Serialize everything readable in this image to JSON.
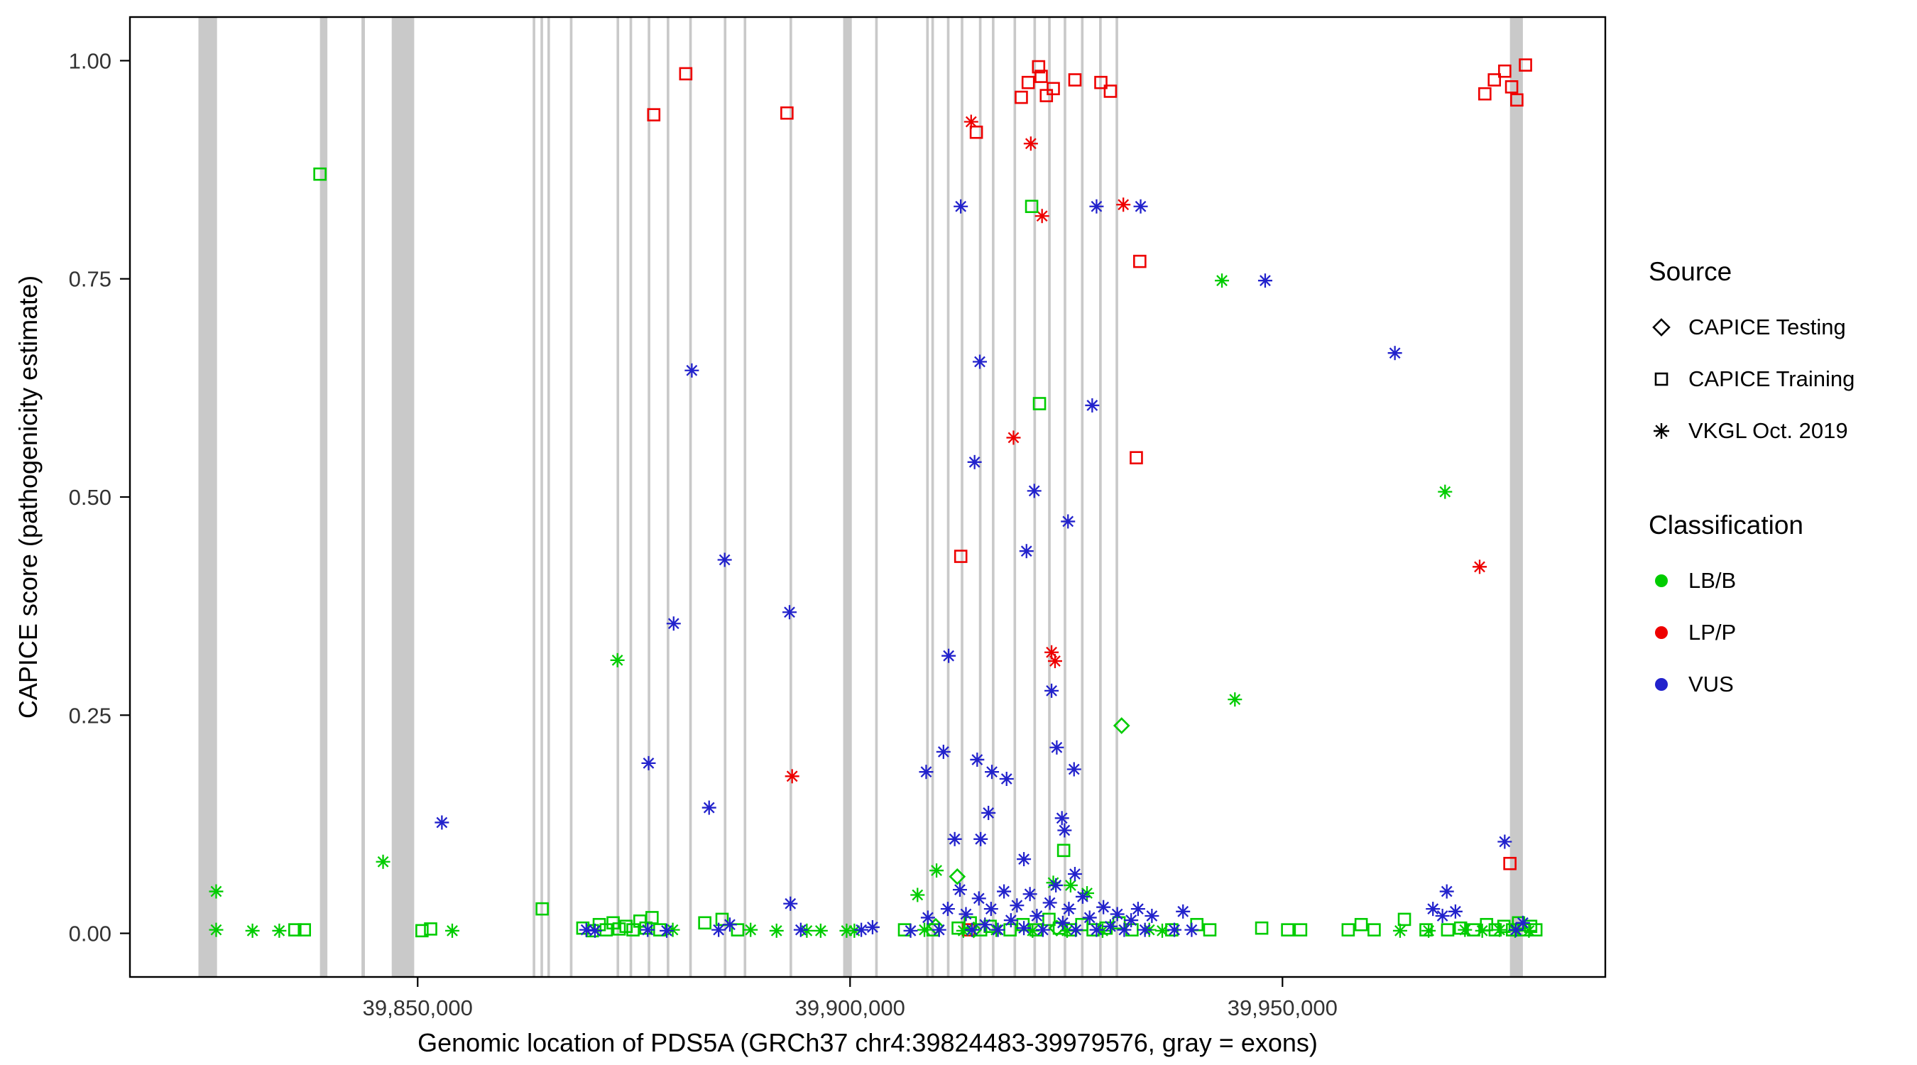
{
  "figure": {
    "xlabel": "Genomic location of PDS5A (GRCh37 chr4:39824483-39979576, gray = exons)",
    "ylabel": "CAPICE score (pathogenicity estimate)"
  },
  "legend": {
    "source_title": "Source",
    "source_items": [
      {
        "shape": "diamond",
        "label": "CAPICE Testing"
      },
      {
        "shape": "square",
        "label": "CAPICE Training"
      },
      {
        "shape": "asterisk",
        "label": "VKGL Oct. 2019"
      }
    ],
    "classification_title": "Classification",
    "classification_items": [
      {
        "color": "#00CC00",
        "label": "LB/B"
      },
      {
        "color": "#EE0000",
        "label": "LP/P"
      },
      {
        "color": "#2222CC",
        "label": "VUS"
      }
    ]
  },
  "chart_data": {
    "type": "scatter",
    "title": "",
    "xlabel": "Genomic location of PDS5A (GRCh37 chr4:39824483-39979576, gray = exons)",
    "ylabel": "CAPICE score (pathogenicity estimate)",
    "xlim": [
      39816728,
      39987331
    ],
    "ylim": [
      -0.05,
      1.05
    ],
    "x_ticks": [
      {
        "value": 39850000,
        "label": "39,850,000"
      },
      {
        "value": 39900000,
        "label": "39,900,000"
      },
      {
        "value": 39950000,
        "label": "39,950,000"
      }
    ],
    "y_ticks": [
      {
        "value": 0.0,
        "label": "0.00"
      },
      {
        "value": 0.25,
        "label": "0.25"
      },
      {
        "value": 0.5,
        "label": "0.50"
      },
      {
        "value": 0.75,
        "label": "0.75"
      },
      {
        "value": 1.0,
        "label": "1.00"
      }
    ],
    "grid": "off",
    "legend_position": "right",
    "exon_color": "#C9C9C9",
    "exons": [
      [
        39824650,
        39826800
      ],
      [
        39838700,
        39839560
      ],
      [
        39843500,
        39843900
      ],
      [
        39847000,
        39849600
      ],
      [
        39863300,
        39863600
      ],
      [
        39864200,
        39864500
      ],
      [
        39865000,
        39865300
      ],
      [
        39867600,
        39867900
      ],
      [
        39873000,
        39873300
      ],
      [
        39874500,
        39874800
      ],
      [
        39876600,
        39876900
      ],
      [
        39878800,
        39879100
      ],
      [
        39881400,
        39881700
      ],
      [
        39885400,
        39885700
      ],
      [
        39887700,
        39888000
      ],
      [
        39893000,
        39893300
      ],
      [
        39899200,
        39900200
      ],
      [
        39902900,
        39903200
      ],
      [
        39908800,
        39909100
      ],
      [
        39909400,
        39909700
      ],
      [
        39911200,
        39911500
      ],
      [
        39912800,
        39913100
      ],
      [
        39914900,
        39915200
      ],
      [
        39916400,
        39916700
      ],
      [
        39918900,
        39919200
      ],
      [
        39921200,
        39921500
      ],
      [
        39922900,
        39923200
      ],
      [
        39924700,
        39925000
      ],
      [
        39926700,
        39927000
      ],
      [
        39928800,
        39929100
      ],
      [
        39930700,
        39931000
      ],
      [
        39976300,
        39977800
      ]
    ],
    "colors": {
      "LB/B": "#00CC00",
      "LP/P": "#EE0000",
      "VUS": "#2222CC"
    },
    "shapes": {
      "CAPICE Testing": "diamond",
      "CAPICE Training": "square",
      "VKGL Oct. 2019": "asterisk"
    },
    "points_format": [
      "genomic_position",
      "capice_score"
    ],
    "series": [
      {
        "classification": "LP/P",
        "source": "CAPICE Training",
        "points": [
          [
            39877300,
            0.938
          ],
          [
            39881000,
            0.985
          ],
          [
            39892700,
            0.94
          ],
          [
            39914600,
            0.918
          ],
          [
            39912800,
            0.432
          ],
          [
            39919800,
            0.958
          ],
          [
            39920600,
            0.975
          ],
          [
            39921800,
            0.993
          ],
          [
            39922100,
            0.982
          ],
          [
            39922700,
            0.96
          ],
          [
            39923500,
            0.968
          ],
          [
            39926000,
            0.978
          ],
          [
            39929000,
            0.975
          ],
          [
            39930100,
            0.965
          ],
          [
            39933500,
            0.77
          ],
          [
            39933100,
            0.545
          ],
          [
            39973400,
            0.962
          ],
          [
            39974500,
            0.978
          ],
          [
            39975700,
            0.988
          ],
          [
            39976500,
            0.97
          ],
          [
            39977100,
            0.955
          ],
          [
            39978100,
            0.995
          ],
          [
            39976300,
            0.08
          ],
          [
            39913700,
            0.004
          ]
        ]
      },
      {
        "classification": "LP/P",
        "source": "VKGL Oct. 2019",
        "points": [
          [
            39914000,
            0.93
          ],
          [
            39920900,
            0.905
          ],
          [
            39922200,
            0.822
          ],
          [
            39931600,
            0.835
          ],
          [
            39918900,
            0.568
          ],
          [
            39923300,
            0.322
          ],
          [
            39923700,
            0.312
          ],
          [
            39893300,
            0.18
          ],
          [
            39972800,
            0.42
          ]
        ]
      },
      {
        "classification": "LB/B",
        "source": "CAPICE Training",
        "points": [
          [
            39838700,
            0.87
          ],
          [
            39921000,
            0.833
          ],
          [
            39921900,
            0.607
          ],
          [
            39864400,
            0.028
          ],
          [
            39924700,
            0.095
          ],
          [
            39835800,
            0.004
          ],
          [
            39836900,
            0.004
          ],
          [
            39850500,
            0.003
          ],
          [
            39851500,
            0.005
          ],
          [
            39869100,
            0.006
          ],
          [
            39870200,
            0.003
          ],
          [
            39871000,
            0.01
          ],
          [
            39871800,
            0.004
          ],
          [
            39872600,
            0.012
          ],
          [
            39873300,
            0.005
          ],
          [
            39874100,
            0.008
          ],
          [
            39874900,
            0.004
          ],
          [
            39875700,
            0.014
          ],
          [
            39876400,
            0.006
          ],
          [
            39877100,
            0.018
          ],
          [
            39878000,
            0.004
          ],
          [
            39883200,
            0.012
          ],
          [
            39885200,
            0.016
          ],
          [
            39887000,
            0.004
          ],
          [
            39906300,
            0.004
          ],
          [
            39909600,
            0.004
          ],
          [
            39912500,
            0.006
          ],
          [
            39913900,
            0.012
          ],
          [
            39915100,
            0.004
          ],
          [
            39916200,
            0.008
          ],
          [
            39918500,
            0.004
          ],
          [
            39920000,
            0.01
          ],
          [
            39921500,
            0.004
          ],
          [
            39923000,
            0.016
          ],
          [
            39924200,
            0.006
          ],
          [
            39925500,
            0.004
          ],
          [
            39926800,
            0.01
          ],
          [
            39928100,
            0.004
          ],
          [
            39929600,
            0.006
          ],
          [
            39931100,
            0.012
          ],
          [
            39932600,
            0.004
          ],
          [
            39937200,
            0.004
          ],
          [
            39940100,
            0.01
          ],
          [
            39941600,
            0.004
          ],
          [
            39947600,
            0.006
          ],
          [
            39950600,
            0.004
          ],
          [
            39952100,
            0.004
          ],
          [
            39957600,
            0.004
          ],
          [
            39959100,
            0.01
          ],
          [
            39960600,
            0.004
          ],
          [
            39964100,
            0.016
          ],
          [
            39966600,
            0.004
          ],
          [
            39969100,
            0.004
          ],
          [
            39970600,
            0.006
          ],
          [
            39972100,
            0.004
          ],
          [
            39973600,
            0.01
          ],
          [
            39974600,
            0.004
          ],
          [
            39975600,
            0.008
          ],
          [
            39976600,
            0.004
          ],
          [
            39977300,
            0.012
          ],
          [
            39978000,
            0.004
          ],
          [
            39978700,
            0.008
          ],
          [
            39979300,
            0.004
          ]
        ]
      },
      {
        "classification": "LB/B",
        "source": "CAPICE Testing",
        "points": [
          [
            39931400,
            0.238
          ],
          [
            39912400,
            0.065
          ],
          [
            39909900,
            0.008
          ],
          [
            39914300,
            0.004
          ],
          [
            39923900,
            0.006
          ]
        ]
      },
      {
        "classification": "LB/B",
        "source": "VKGL Oct. 2019",
        "points": [
          [
            39826700,
            0.048
          ],
          [
            39826700,
            0.004
          ],
          [
            39830900,
            0.003
          ],
          [
            39834000,
            0.003
          ],
          [
            39846000,
            0.082
          ],
          [
            39854000,
            0.003
          ],
          [
            39873100,
            0.313
          ],
          [
            39879500,
            0.004
          ],
          [
            39888500,
            0.004
          ],
          [
            39891500,
            0.003
          ],
          [
            39895000,
            0.003
          ],
          [
            39896600,
            0.003
          ],
          [
            39899600,
            0.003
          ],
          [
            39900500,
            0.003
          ],
          [
            39907800,
            0.044
          ],
          [
            39910000,
            0.072
          ],
          [
            39908600,
            0.004
          ],
          [
            39913100,
            0.003
          ],
          [
            39916900,
            0.004
          ],
          [
            39921100,
            0.003
          ],
          [
            39923500,
            0.058
          ],
          [
            39925500,
            0.055
          ],
          [
            39927400,
            0.046
          ],
          [
            39925100,
            0.003
          ],
          [
            39929200,
            0.003
          ],
          [
            39934600,
            0.004
          ],
          [
            39936100,
            0.003
          ],
          [
            39943000,
            0.748
          ],
          [
            39944500,
            0.268
          ],
          [
            39968800,
            0.506
          ],
          [
            39963600,
            0.003
          ],
          [
            39966900,
            0.003
          ],
          [
            39971100,
            0.004
          ],
          [
            39973100,
            0.003
          ],
          [
            39975100,
            0.004
          ],
          [
            39976900,
            0.003
          ],
          [
            39978500,
            0.003
          ]
        ]
      },
      {
        "classification": "VUS",
        "source": "VKGL Oct. 2019",
        "points": [
          [
            39852800,
            0.127
          ],
          [
            39876700,
            0.195
          ],
          [
            39879600,
            0.355
          ],
          [
            39881700,
            0.645
          ],
          [
            39883700,
            0.144
          ],
          [
            39885500,
            0.428
          ],
          [
            39893000,
            0.368
          ],
          [
            39908800,
            0.185
          ],
          [
            39910800,
            0.208
          ],
          [
            39911400,
            0.318
          ],
          [
            39912100,
            0.108
          ],
          [
            39912800,
            0.833
          ],
          [
            39914400,
            0.54
          ],
          [
            39914700,
            0.199
          ],
          [
            39915000,
            0.655
          ],
          [
            39915100,
            0.108
          ],
          [
            39916000,
            0.138
          ],
          [
            39916400,
            0.185
          ],
          [
            39918100,
            0.177
          ],
          [
            39920100,
            0.085
          ],
          [
            39920400,
            0.438
          ],
          [
            39921300,
            0.507
          ],
          [
            39923300,
            0.278
          ],
          [
            39923900,
            0.213
          ],
          [
            39924500,
            0.132
          ],
          [
            39924800,
            0.118
          ],
          [
            39925200,
            0.472
          ],
          [
            39925900,
            0.188
          ],
          [
            39926000,
            0.068
          ],
          [
            39928000,
            0.605
          ],
          [
            39928500,
            0.833
          ],
          [
            39933600,
            0.833
          ],
          [
            39948000,
            0.748
          ],
          [
            39963000,
            0.665
          ],
          [
            39969000,
            0.048
          ],
          [
            39970000,
            0.025
          ],
          [
            39975700,
            0.105
          ],
          [
            39869500,
            0.004
          ],
          [
            39870500,
            0.003
          ],
          [
            39876600,
            0.004
          ],
          [
            39878800,
            0.003
          ],
          [
            39884800,
            0.004
          ],
          [
            39886100,
            0.01
          ],
          [
            39893100,
            0.034
          ],
          [
            39894300,
            0.004
          ],
          [
            39901300,
            0.004
          ],
          [
            39902600,
            0.007
          ],
          [
            39907000,
            0.003
          ],
          [
            39909000,
            0.018
          ],
          [
            39910300,
            0.004
          ],
          [
            39911300,
            0.028
          ],
          [
            39912700,
            0.05
          ],
          [
            39913400,
            0.022
          ],
          [
            39914100,
            0.004
          ],
          [
            39914900,
            0.04
          ],
          [
            39915600,
            0.01
          ],
          [
            39916300,
            0.028
          ],
          [
            39917100,
            0.004
          ],
          [
            39917800,
            0.048
          ],
          [
            39918600,
            0.015
          ],
          [
            39919300,
            0.032
          ],
          [
            39920100,
            0.006
          ],
          [
            39920800,
            0.045
          ],
          [
            39921600,
            0.02
          ],
          [
            39922300,
            0.004
          ],
          [
            39923100,
            0.035
          ],
          [
            39923800,
            0.055
          ],
          [
            39924600,
            0.012
          ],
          [
            39925300,
            0.028
          ],
          [
            39926100,
            0.004
          ],
          [
            39926900,
            0.042
          ],
          [
            39927700,
            0.018
          ],
          [
            39928500,
            0.004
          ],
          [
            39929300,
            0.03
          ],
          [
            39930100,
            0.008
          ],
          [
            39930900,
            0.022
          ],
          [
            39931700,
            0.004
          ],
          [
            39932500,
            0.015
          ],
          [
            39933300,
            0.028
          ],
          [
            39934100,
            0.004
          ],
          [
            39934900,
            0.02
          ],
          [
            39937500,
            0.004
          ],
          [
            39938500,
            0.025
          ],
          [
            39939500,
            0.004
          ],
          [
            39967400,
            0.028
          ],
          [
            39968500,
            0.02
          ],
          [
            39977000,
            0.004
          ],
          [
            39977800,
            0.012
          ]
        ]
      }
    ]
  }
}
